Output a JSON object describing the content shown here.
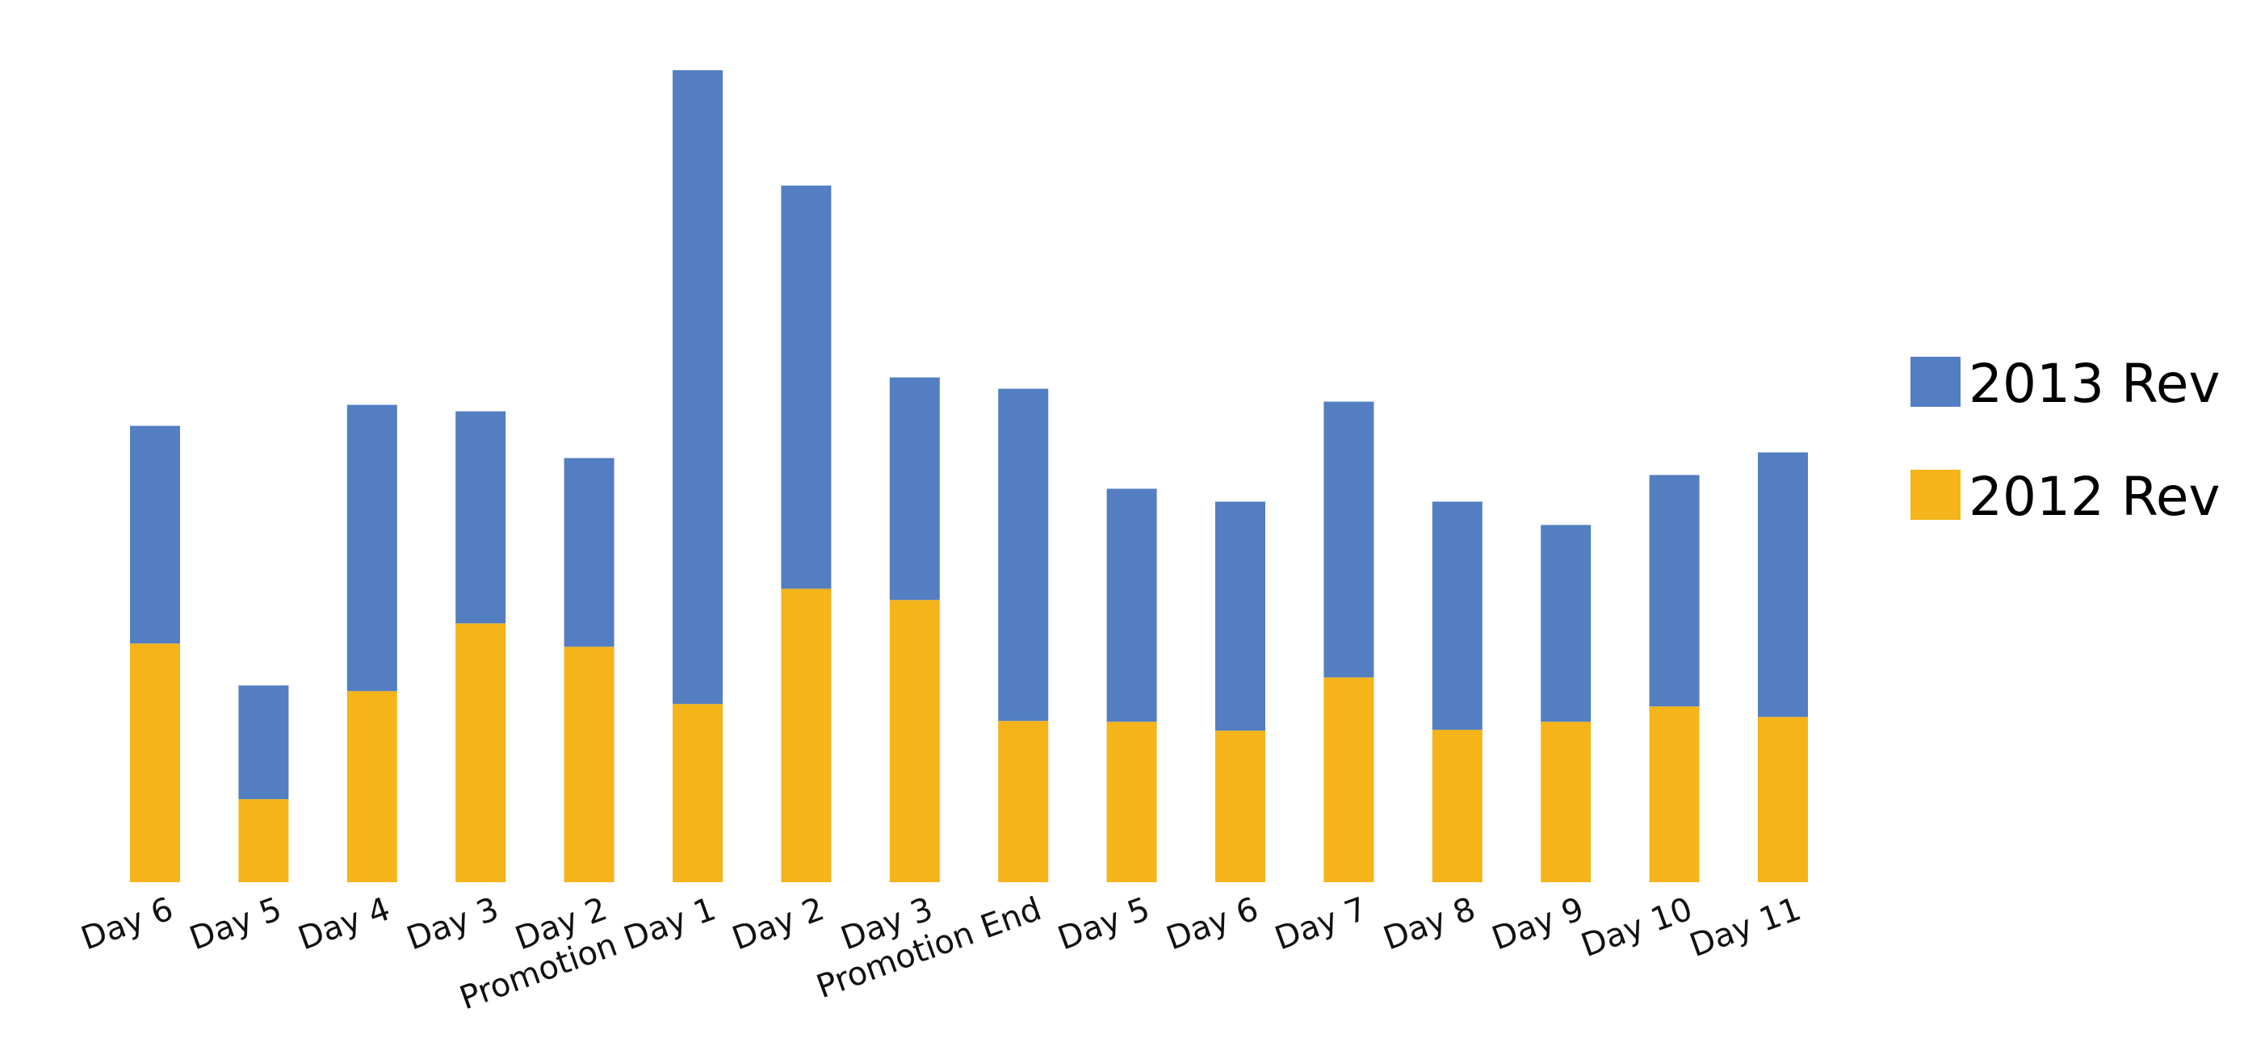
{
  "chart_data": {
    "type": "bar",
    "stacked": true,
    "title": "",
    "xlabel": "",
    "ylabel": "",
    "ylim": [
      0,
      1010
    ],
    "grid": false,
    "y_axis_visible": false,
    "legend_position": "right",
    "categories": [
      "Day 6",
      "Day 5",
      "Day 4",
      "Day 3",
      "Day 2",
      "Promotion Day 1",
      "Day 2",
      "Day 3",
      "Promotion End",
      "Day 5",
      "Day 6",
      "Day 7",
      "Day 8",
      "Day 9",
      "Day 10",
      "Day 11"
    ],
    "series": [
      {
        "name": "2012 Rev",
        "color": "#F4B41A",
        "values": [
          296,
          103,
          237,
          321,
          292,
          221,
          364,
          350,
          200,
          199,
          188,
          254,
          189,
          199,
          218,
          205
        ]
      },
      {
        "name": "2013 Rev",
        "color": "#537EC2",
        "values": [
          270,
          141,
          355,
          263,
          234,
          786,
          500,
          276,
          412,
          289,
          284,
          342,
          283,
          244,
          287,
          328
        ]
      }
    ],
    "legend": [
      {
        "series": "2013 Rev",
        "color": "#537EC2"
      },
      {
        "series": "2012 Rev",
        "color": "#F4B41A"
      }
    ]
  }
}
